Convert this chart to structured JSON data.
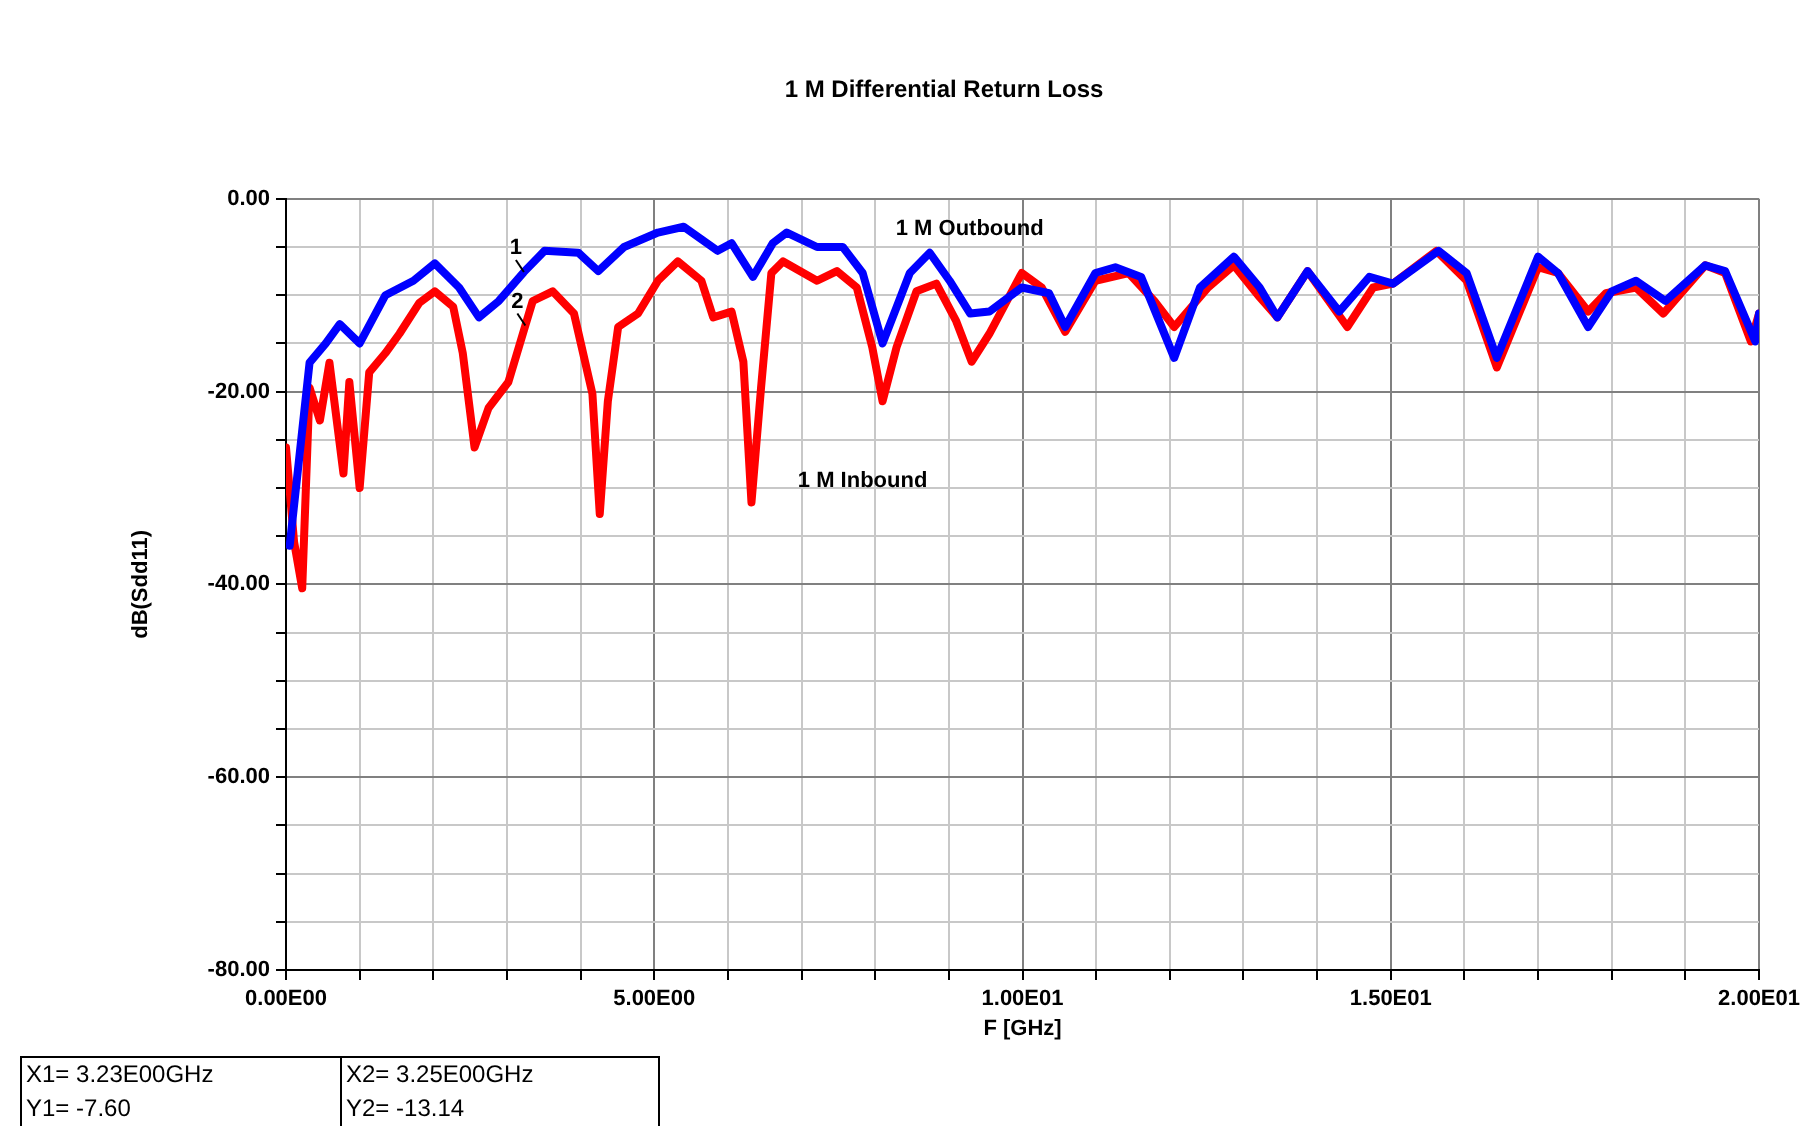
{
  "chart_data": {
    "type": "line",
    "title": "1 M Differential Return Loss",
    "xlabel": "F [GHz]",
    "ylabel": "dB(Sdd11)",
    "xlim": [
      0,
      20
    ],
    "ylim": [
      -80,
      0
    ],
    "xticks": [
      {
        "value": 0,
        "label": "0.00E00"
      },
      {
        "value": 1,
        "label": null
      },
      {
        "value": 2,
        "label": null
      },
      {
        "value": 3,
        "label": null
      },
      {
        "value": 4,
        "label": null
      },
      {
        "value": 5,
        "label": "5.00E00"
      },
      {
        "value": 6,
        "label": null
      },
      {
        "value": 7,
        "label": null
      },
      {
        "value": 8,
        "label": null
      },
      {
        "value": 9,
        "label": null
      },
      {
        "value": 10,
        "label": "1.00E01"
      },
      {
        "value": 11,
        "label": null
      },
      {
        "value": 12,
        "label": null
      },
      {
        "value": 13,
        "label": null
      },
      {
        "value": 14,
        "label": null
      },
      {
        "value": 15,
        "label": "1.50E01"
      },
      {
        "value": 16,
        "label": null
      },
      {
        "value": 17,
        "label": null
      },
      {
        "value": 18,
        "label": null
      },
      {
        "value": 19,
        "label": null
      },
      {
        "value": 20,
        "label": "2.00E01"
      }
    ],
    "yticks": [
      {
        "value": -80,
        "label": "-80.00"
      },
      {
        "value": -75,
        "label": null
      },
      {
        "value": -70,
        "label": null
      },
      {
        "value": -65,
        "label": null
      },
      {
        "value": -60,
        "label": "-60.00"
      },
      {
        "value": -55,
        "label": null
      },
      {
        "value": -50,
        "label": null
      },
      {
        "value": -45,
        "label": null
      },
      {
        "value": -40,
        "label": "-40.00"
      },
      {
        "value": -35,
        "label": null
      },
      {
        "value": -30,
        "label": null
      },
      {
        "value": -25,
        "label": null
      },
      {
        "value": -20,
        "label": "-20.00"
      },
      {
        "value": -15,
        "label": null
      },
      {
        "value": -10,
        "label": null
      },
      {
        "value": -5,
        "label": null
      },
      {
        "value": 0,
        "label": "0.00"
      }
    ],
    "grid": true,
    "legend": false,
    "marker": "none",
    "line_style": "solid",
    "series": [
      {
        "name": "1 M Outbound",
        "color": "#0000ff",
        "x": [
          0.05,
          0.32,
          0.54,
          0.73,
          1.0,
          1.35,
          1.73,
          2.02,
          2.35,
          2.62,
          2.89,
          3.23,
          3.51,
          3.97,
          4.24,
          4.59,
          5.05,
          5.4,
          5.86,
          6.05,
          6.34,
          6.61,
          6.8,
          7.21,
          7.56,
          7.83,
          8.1,
          8.47,
          8.74,
          9.01,
          9.29,
          9.55,
          9.99,
          10.36,
          10.58,
          10.99,
          11.26,
          11.61,
          12.06,
          12.41,
          12.87,
          13.22,
          13.46,
          13.87,
          14.3,
          14.71,
          15.03,
          15.65,
          16.03,
          16.44,
          17.0,
          17.27,
          17.68,
          18.0,
          18.33,
          18.73,
          19.27,
          19.54,
          19.95,
          20.0
        ],
        "values": [
          -36,
          -17,
          -15,
          -13,
          -15,
          -10,
          -8.5,
          -6.7,
          -9.2,
          -12.3,
          -10.6,
          -7.6,
          -5.4,
          -5.6,
          -7.5,
          -5,
          -3.5,
          -2.9,
          -5.4,
          -4.6,
          -8.1,
          -4.6,
          -3.5,
          -5,
          -5,
          -7.7,
          -15,
          -7.7,
          -5.6,
          -8.5,
          -11.9,
          -11.7,
          -9.2,
          -9.8,
          -13.3,
          -7.7,
          -7.1,
          -8.1,
          -16.5,
          -9.2,
          -6,
          -9.2,
          -12.3,
          -7.5,
          -11.7,
          -8.1,
          -8.8,
          -5.4,
          -7.7,
          -16.5,
          -6,
          -7.7,
          -13.3,
          -9.6,
          -8.5,
          -10.6,
          -6.9,
          -7.5,
          -14.8,
          -11.9
        ]
      },
      {
        "name": "1 M Inbound",
        "color": "#ff0000",
        "x": [
          0,
          0.11,
          0.22,
          0.32,
          0.46,
          0.59,
          0.78,
          0.86,
          1.0,
          1.13,
          1.35,
          1.54,
          1.81,
          2.02,
          2.27,
          2.4,
          2.56,
          2.75,
          3.02,
          3.25,
          3.35,
          3.62,
          3.91,
          4.16,
          4.26,
          4.37,
          4.51,
          4.78,
          5.05,
          5.32,
          5.64,
          5.8,
          6.05,
          6.21,
          6.32,
          6.45,
          6.59,
          6.75,
          7.21,
          7.48,
          7.75,
          7.96,
          8.1,
          8.29,
          8.56,
          8.83,
          9.1,
          9.31,
          9.55,
          9.99,
          10.26,
          10.58,
          10.99,
          11.44,
          11.79,
          12.06,
          12.52,
          12.87,
          13.22,
          13.46,
          13.87,
          14.41,
          14.76,
          15.03,
          15.62,
          16.03,
          16.44,
          17.0,
          17.27,
          17.68,
          17.92,
          18.33,
          18.7,
          19.27,
          19.54,
          19.89,
          20.0
        ],
        "values": [
          -25.8,
          -35.6,
          -40.4,
          -19.6,
          -23,
          -17,
          -28.5,
          -19,
          -30,
          -18,
          -16,
          -14,
          -10.8,
          -9.6,
          -11.2,
          -16,
          -25.8,
          -21.7,
          -19,
          -13.14,
          -10.6,
          -9.6,
          -11.9,
          -20.2,
          -32.7,
          -21,
          -13.3,
          -11.9,
          -8.5,
          -6.5,
          -8.5,
          -12.3,
          -11.7,
          -16.9,
          -31.5,
          -19.6,
          -7.7,
          -6.5,
          -8.5,
          -7.5,
          -9.2,
          -15.4,
          -21,
          -15.4,
          -9.6,
          -8.8,
          -12.7,
          -16.9,
          -14,
          -7.7,
          -9.2,
          -13.8,
          -8.5,
          -7.7,
          -10.6,
          -13.3,
          -9.2,
          -6.9,
          -10.2,
          -12.3,
          -7.5,
          -13.3,
          -9.2,
          -8.8,
          -5.4,
          -8.5,
          -17.5,
          -7.1,
          -7.7,
          -11.7,
          -9.8,
          -9.2,
          -11.9,
          -6.9,
          -7.7,
          -14.8,
          -11.9
        ]
      }
    ],
    "annotations": [
      {
        "text": "1",
        "x": 3.23,
        "y": -7.6
      },
      {
        "text": "2",
        "x": 3.25,
        "y": -13.14
      },
      "X1= 3.23E00GHz",
      "Y1= -7.60",
      "X2= 3.25E00GHz",
      "Y2= -13.14"
    ]
  }
}
